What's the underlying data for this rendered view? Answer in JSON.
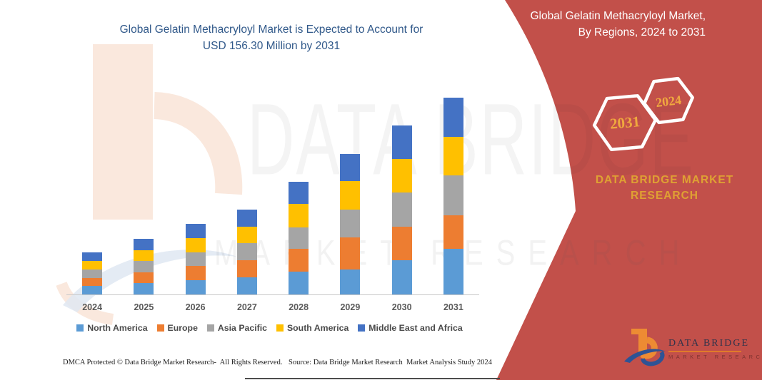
{
  "chart_data": {
    "type": "bar",
    "stacked": true,
    "title": "Global Gelatin Methacryloyl Market is Expected to Account for USD 156.30 Million by 2031",
    "title_lines": [
      "Global Gelatin Methacryloyl Market is Expected to Account for",
      "USD 156.30 Million by 2031"
    ],
    "unit": "USD Million",
    "categories": [
      "2024",
      "2025",
      "2026",
      "2027",
      "2028",
      "2029",
      "2030",
      "2031"
    ],
    "series": [
      {
        "name": "North America",
        "color": "#5B9BD5",
        "values": [
          6.8,
          8.9,
          11.3,
          13.6,
          18.1,
          20.0,
          27.2,
          36.2
        ]
      },
      {
        "name": "Europe",
        "color": "#ED7D31",
        "values": [
          6.5,
          8.8,
          11.2,
          13.5,
          18.1,
          25.1,
          26.6,
          26.4
        ]
      },
      {
        "name": "Asia Pacific",
        "color": "#A5A5A5",
        "values": [
          6.8,
          8.9,
          11.2,
          13.5,
          17.0,
          22.1,
          27.0,
          32.0
        ]
      },
      {
        "name": "South America",
        "color": "#FFC000",
        "values": [
          6.5,
          8.8,
          11.2,
          13.4,
          18.9,
          22.7,
          26.7,
          30.6
        ]
      },
      {
        "name": "Middle East and Africa",
        "color": "#4472C4",
        "values": [
          6.8,
          8.8,
          11.2,
          13.4,
          17.4,
          21.7,
          26.7,
          31.1
        ]
      }
    ],
    "totals": [
      33.4,
      44.2,
      56.1,
      67.4,
      89.5,
      111.6,
      134.2,
      156.3
    ],
    "highlight_value": "USD 156.30 Million",
    "highlight_year": "2031",
    "ylim": [
      0,
      160
    ],
    "grid": false,
    "y_axis_visible": false,
    "legend_position": "bottom",
    "title_color": "#31598A",
    "axis_label_color": "#595959"
  },
  "side_panel": {
    "title": "Global Gelatin Methacryloyl Market, By Regions, 2024 to 2031",
    "hexagons": [
      {
        "label": "2031"
      },
      {
        "label": "2024"
      }
    ],
    "brand_lines": [
      "DATA BRIDGE MARKET",
      "RESEARCH"
    ],
    "bg_color": "#C2504A",
    "accent_color": "#DFA133",
    "hex_label_color": "#F0A93E"
  },
  "watermark": {
    "line1": "DATA BRIDGE",
    "line2": "MARKET RESEARCH"
  },
  "logo": {
    "title": "DATA BRIDGE",
    "subtitle": "MARKET RESEARCH"
  },
  "footer": {
    "dmca": "DMCA Protected © Data Bridge Market Research-  All Rights Reserved.",
    "source": "Source: Data Bridge Market Research  Market Analysis Study 2024"
  }
}
